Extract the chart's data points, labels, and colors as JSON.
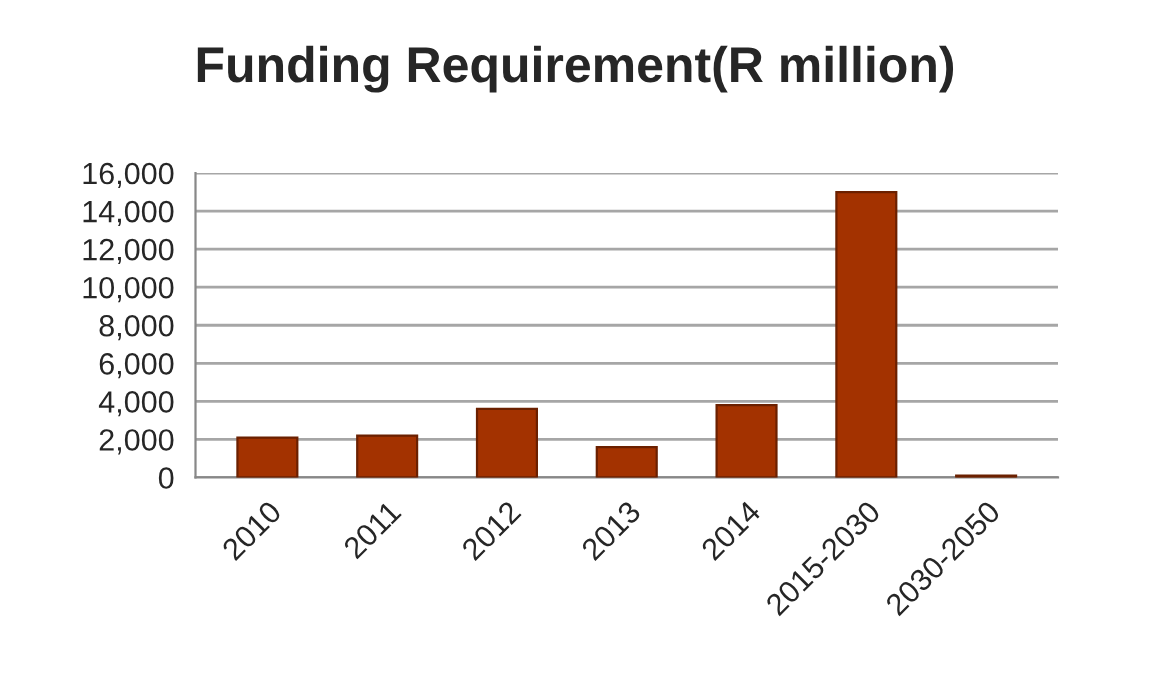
{
  "chart_data": {
    "type": "bar",
    "title": "Funding Requirement(R million)",
    "categories": [
      "2010",
      "2011",
      "2012",
      "2013",
      "2014",
      "2015-2030",
      "2030-2050"
    ],
    "values": [
      2100,
      2200,
      3600,
      1600,
      3800,
      15000,
      100
    ],
    "color": "#a33200",
    "ylim": [
      0,
      16000
    ],
    "yticks": [
      {
        "value": 0,
        "label": "0"
      },
      {
        "value": 2000,
        "label": "2,000"
      },
      {
        "value": 4000,
        "label": "4,000"
      },
      {
        "value": 6000,
        "label": "6,000"
      },
      {
        "value": 8000,
        "label": "8,000"
      },
      {
        "value": 10000,
        "label": "10,000"
      },
      {
        "value": 12000,
        "label": "12,000"
      },
      {
        "value": 14000,
        "label": "14,000"
      },
      {
        "value": 16000,
        "label": "16,000"
      }
    ],
    "grid": "y"
  }
}
